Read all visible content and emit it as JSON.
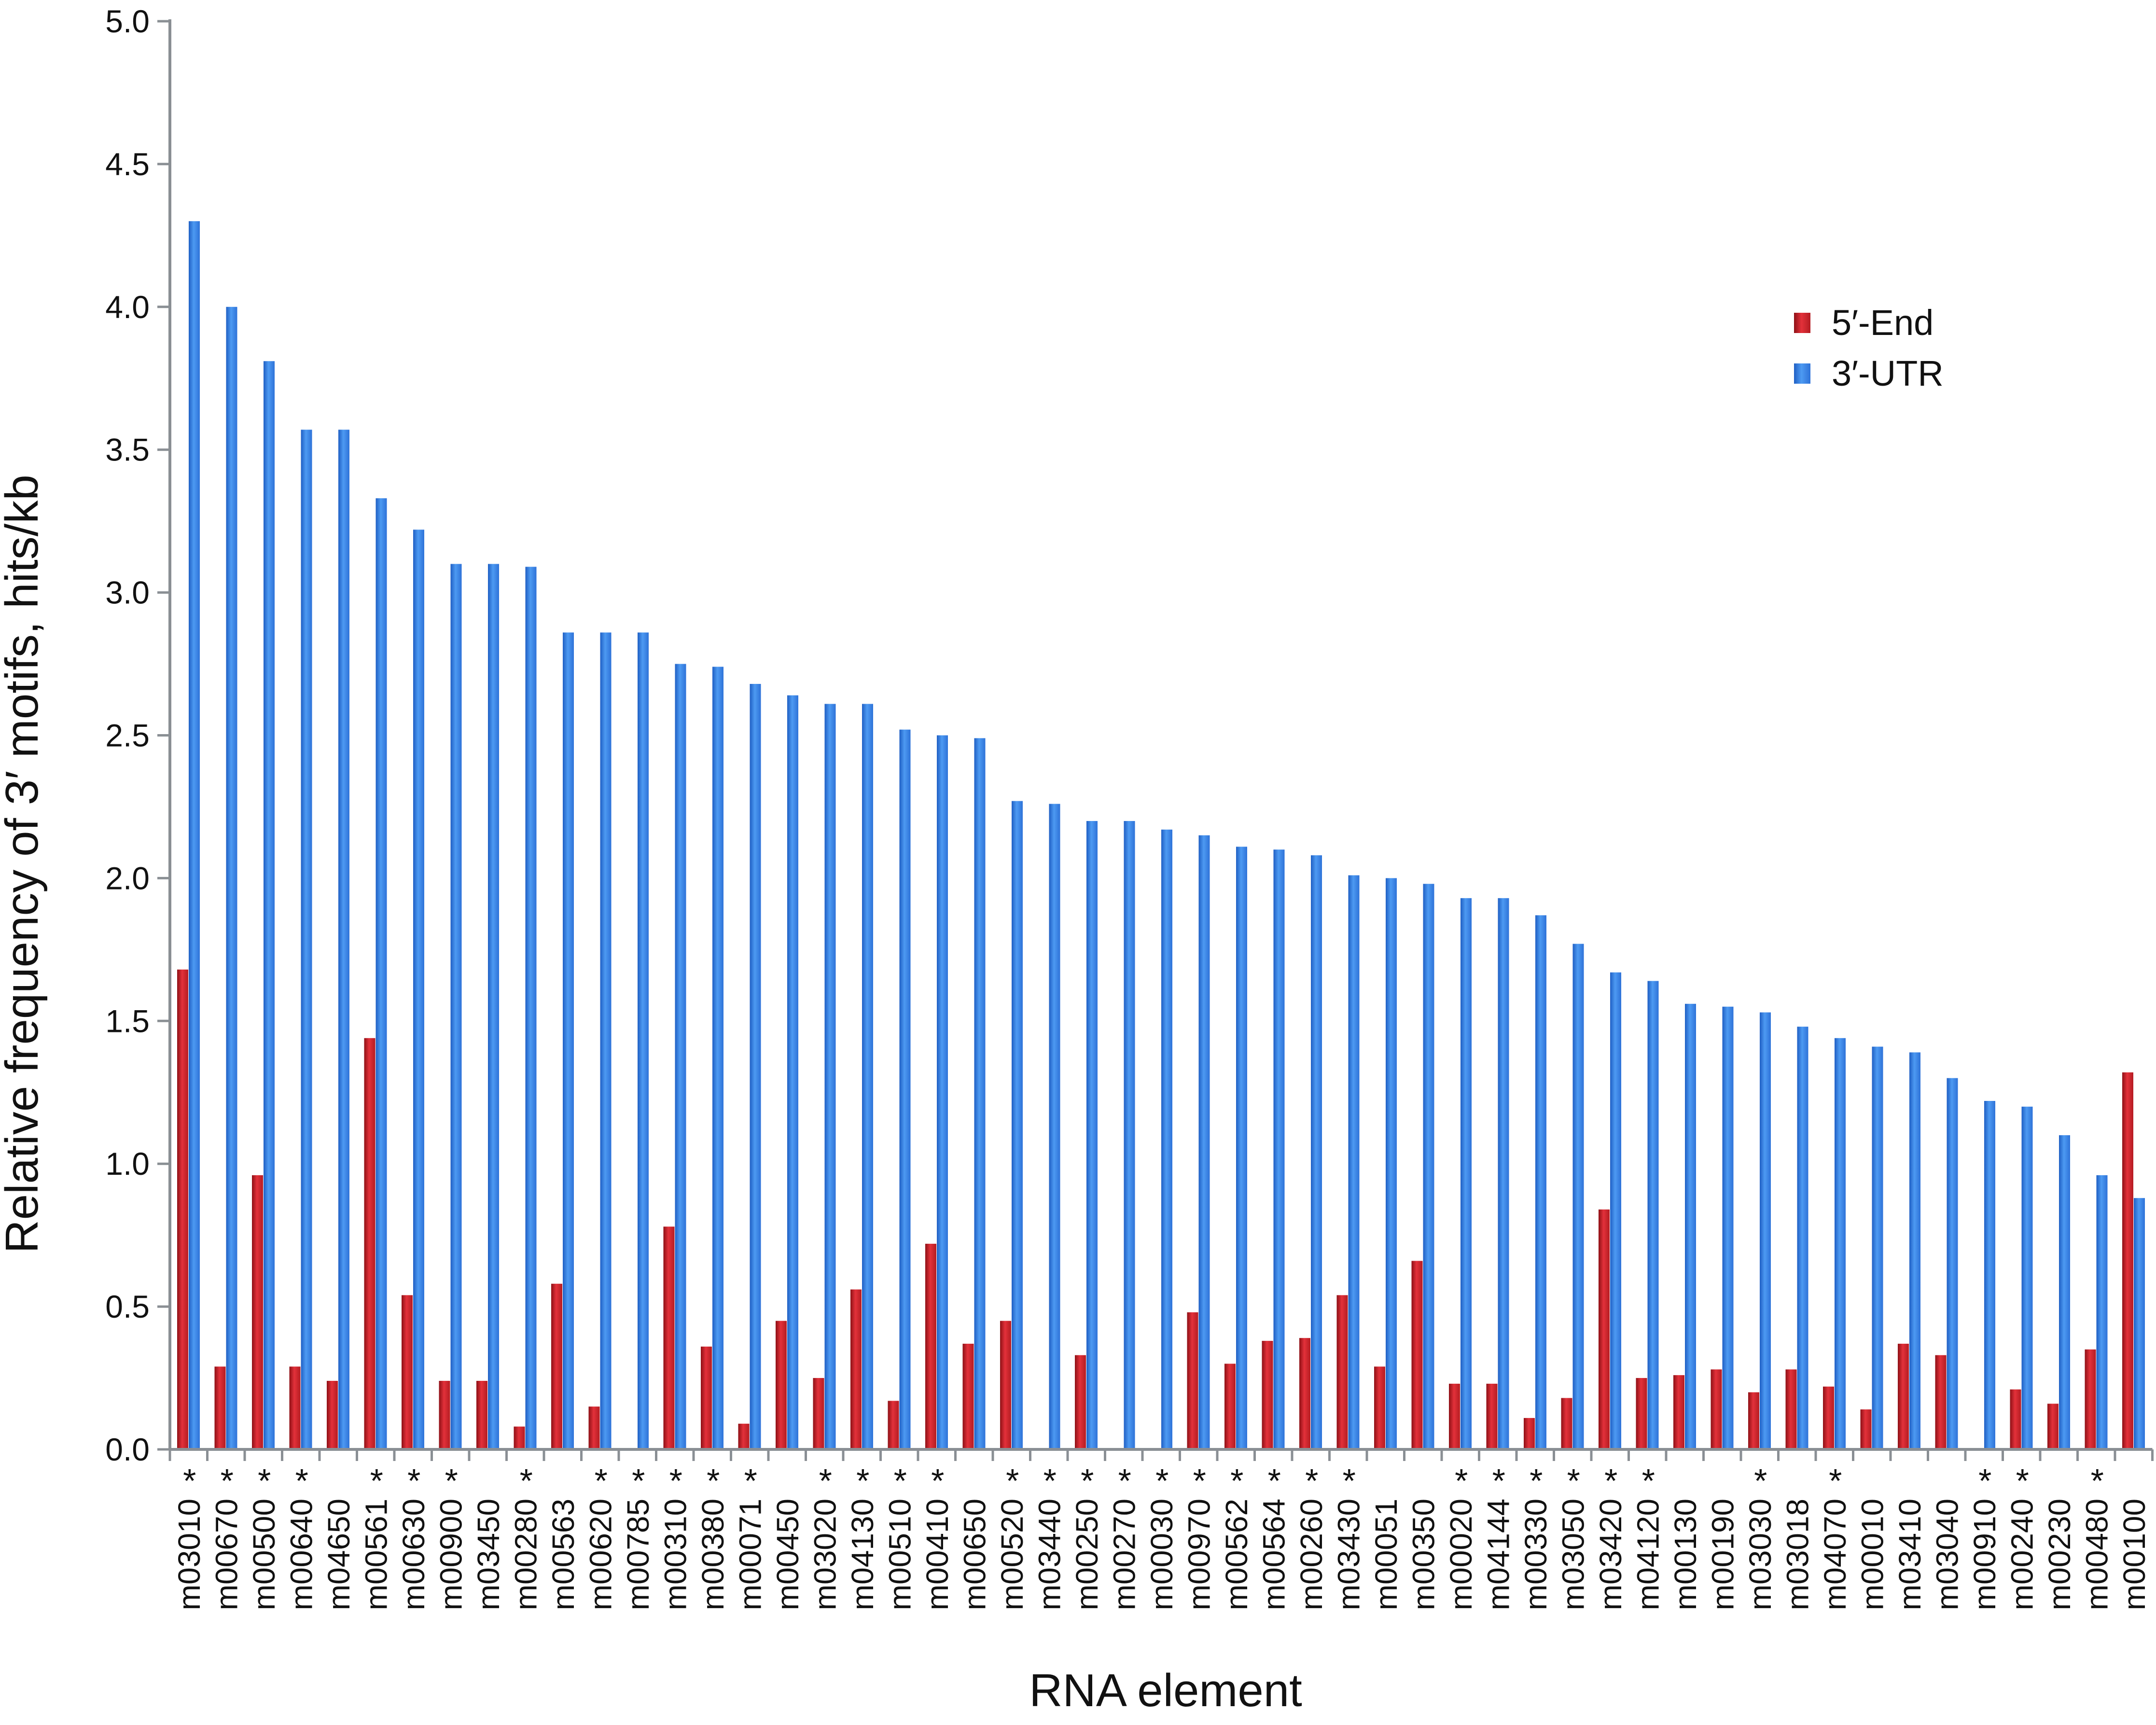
{
  "chart_data": {
    "type": "bar",
    "xlabel": "RNA element",
    "ylabel": "Relative frequency of 3′ motifs, hits/kb",
    "ylim": [
      0,
      5
    ],
    "yticks": [
      "0.0",
      "0.5",
      "1.0",
      "1.5",
      "2.0",
      "2.5",
      "3.0",
      "3.5",
      "4.0",
      "4.5",
      "5.0"
    ],
    "grid": false,
    "legend_position": "top-right",
    "categories": [
      "m03010",
      "m00670",
      "m00500",
      "m00640",
      "m04650",
      "m00561",
      "m00630",
      "m00900",
      "m03450",
      "m00280",
      "m00563",
      "m00620",
      "m00785",
      "m00310",
      "m00380",
      "m00071",
      "m00450",
      "m03020",
      "m04130",
      "m00510",
      "m00410",
      "m00650",
      "m00520",
      "m03440",
      "m00250",
      "m00270",
      "m00030",
      "m00970",
      "m00562",
      "m00564",
      "m00260",
      "m03430",
      "m00051",
      "m00350",
      "m00020",
      "m04144",
      "m00330",
      "m03050",
      "m03420",
      "m04120",
      "m00130",
      "m00190",
      "m03030",
      "m03018",
      "m04070",
      "m00010",
      "m03410",
      "m03040",
      "m00910",
      "m00240",
      "m00230",
      "m00480",
      "m00100"
    ],
    "marks": [
      "*",
      "*",
      "*",
      "*",
      "",
      "*",
      "*",
      "*",
      "",
      "*",
      "",
      "*",
      "*",
      "*",
      "*",
      "*",
      "",
      "*",
      "*",
      "*",
      "*",
      "",
      "*",
      "*",
      "*",
      "*",
      "*",
      "*",
      "*",
      "*",
      "*",
      "*",
      "",
      "",
      "*",
      "*",
      "*",
      "*",
      "*",
      "*",
      "",
      "",
      "*",
      "",
      "*",
      "",
      "",
      "",
      "*",
      "*",
      "",
      "*",
      ""
    ],
    "series": [
      {
        "name": "5′-End",
        "color": "#d9262e",
        "values": [
          1.68,
          0.29,
          0.96,
          0.29,
          0.24,
          1.44,
          0.54,
          0.24,
          0.24,
          0.08,
          0.58,
          0.15,
          0.0,
          0.78,
          0.36,
          0.09,
          0.45,
          0.25,
          0.56,
          0.17,
          0.72,
          0.37,
          0.45,
          0.0,
          0.33,
          0.0,
          0.0,
          0.48,
          0.3,
          0.38,
          0.39,
          0.54,
          0.29,
          0.66,
          0.23,
          0.23,
          0.11,
          0.18,
          0.84,
          0.25,
          0.26,
          0.28,
          0.2,
          0.28,
          0.22,
          0.14,
          0.37,
          0.33,
          0.0,
          0.21,
          0.16,
          0.35,
          1.32
        ]
      },
      {
        "name": "3′-UTR",
        "color": "#3b86e8",
        "values": [
          4.3,
          4.0,
          3.81,
          3.57,
          3.57,
          3.33,
          3.22,
          3.1,
          3.1,
          3.09,
          2.86,
          2.86,
          2.86,
          2.75,
          2.74,
          2.68,
          2.64,
          2.61,
          2.61,
          2.52,
          2.5,
          2.49,
          2.27,
          2.26,
          2.2,
          2.2,
          2.17,
          2.15,
          2.11,
          2.1,
          2.08,
          2.01,
          2.0,
          1.98,
          1.93,
          1.93,
          1.87,
          1.77,
          1.67,
          1.64,
          1.56,
          1.55,
          1.53,
          1.48,
          1.44,
          1.41,
          1.39,
          1.3,
          1.22,
          1.2,
          1.1,
          0.96,
          0.88
        ]
      }
    ]
  }
}
